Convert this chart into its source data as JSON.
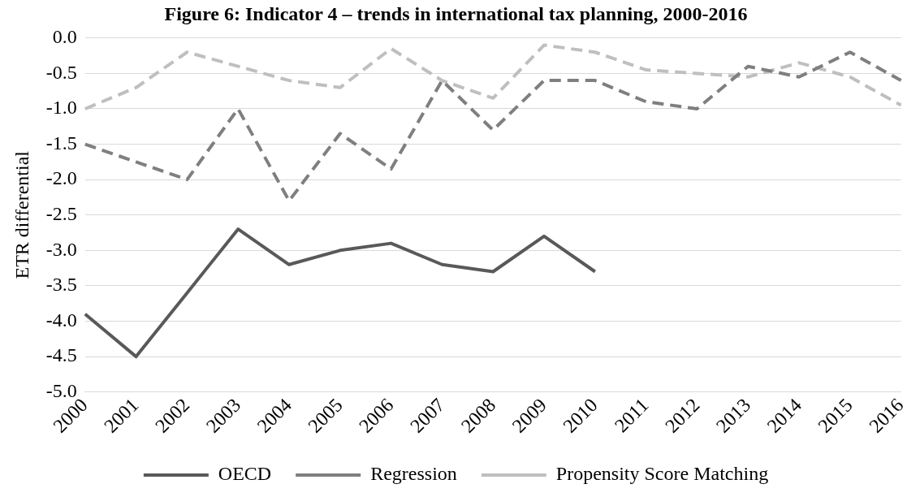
{
  "chart_data": {
    "type": "line",
    "title": "Figure 6: Indicator 4 – trends in international tax planning, 2000-2016",
    "ylabel": "ETR differential",
    "categories": [
      "2000",
      "2001",
      "2002",
      "2003",
      "2004",
      "2005",
      "2006",
      "2007",
      "2008",
      "2009",
      "2010",
      "2011",
      "2012",
      "2013",
      "2014",
      "2015",
      "2016"
    ],
    "series": [
      {
        "name": "OECD",
        "color": "#595959",
        "line_style": "solid",
        "values": [
          -3.9,
          -4.5,
          -3.6,
          -2.7,
          -3.2,
          -3.0,
          -2.9,
          -3.2,
          -3.3,
          -2.8,
          -3.3,
          null,
          null,
          null,
          null,
          null,
          null
        ]
      },
      {
        "name": "Regression",
        "color": "#7f7f7f",
        "line_style": "dashed",
        "values": [
          -1.5,
          -1.75,
          -2.0,
          -1.0,
          -2.3,
          -1.35,
          -1.85,
          -0.6,
          -1.3,
          -0.6,
          -0.6,
          -0.9,
          -1.0,
          -0.4,
          -0.55,
          -0.2,
          -0.6
        ]
      },
      {
        "name": "Propensity Score Matching",
        "color": "#bfbfbf",
        "line_style": "dashed",
        "values": [
          -1.0,
          -0.7,
          -0.2,
          -0.4,
          -0.6,
          -0.7,
          -0.15,
          -0.6,
          -0.85,
          -0.1,
          -0.2,
          -0.45,
          -0.5,
          -0.55,
          -0.35,
          -0.55,
          -0.95
        ]
      }
    ],
    "ylim": [
      -5.0,
      0.0
    ],
    "yticks": [
      {
        "value": -5.0,
        "label": "-5.0"
      },
      {
        "value": -4.5,
        "label": "-4.5"
      },
      {
        "value": -4.0,
        "label": "-4.0"
      },
      {
        "value": -3.5,
        "label": "-3.5"
      },
      {
        "value": -3.0,
        "label": "-3.0"
      },
      {
        "value": -2.5,
        "label": "-2.5"
      },
      {
        "value": -2.0,
        "label": "-2.0"
      },
      {
        "value": -1.5,
        "label": "-1.5"
      },
      {
        "value": -1.0,
        "label": "-1.0"
      },
      {
        "value": -0.5,
        "label": "-0.5"
      },
      {
        "value": 0.0,
        "label": "0.0"
      }
    ],
    "grid": "y",
    "legend": "bottom",
    "marker": "none"
  }
}
